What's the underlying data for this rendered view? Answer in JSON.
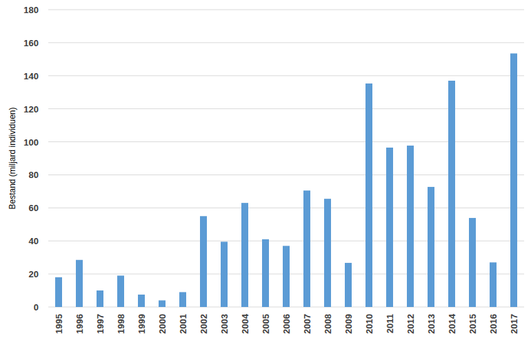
{
  "chart_data": {
    "type": "bar",
    "y_label": "Bestand (miljard individuen)",
    "categories": [
      "1995",
      "1996",
      "1997",
      "1998",
      "1999",
      "2000",
      "2001",
      "2002",
      "2003",
      "2004",
      "2005",
      "2006",
      "2007",
      "2008",
      "2009",
      "2010",
      "2011",
      "2012",
      "2013",
      "2014",
      "2015",
      "2016",
      "2017"
    ],
    "values": [
      18,
      28.5,
      10,
      19,
      7.5,
      4,
      9,
      55,
      39.5,
      63,
      41,
      37,
      70.5,
      65.5,
      26.7,
      135.3,
      96.5,
      97.7,
      72.7,
      137,
      53.9,
      27,
      153.5
    ],
    "color": "#5b9bd5",
    "ylim": [
      0,
      180
    ],
    "yticks": [
      0,
      20,
      40,
      60,
      80,
      100,
      120,
      140,
      160,
      180
    ],
    "grid": true
  }
}
